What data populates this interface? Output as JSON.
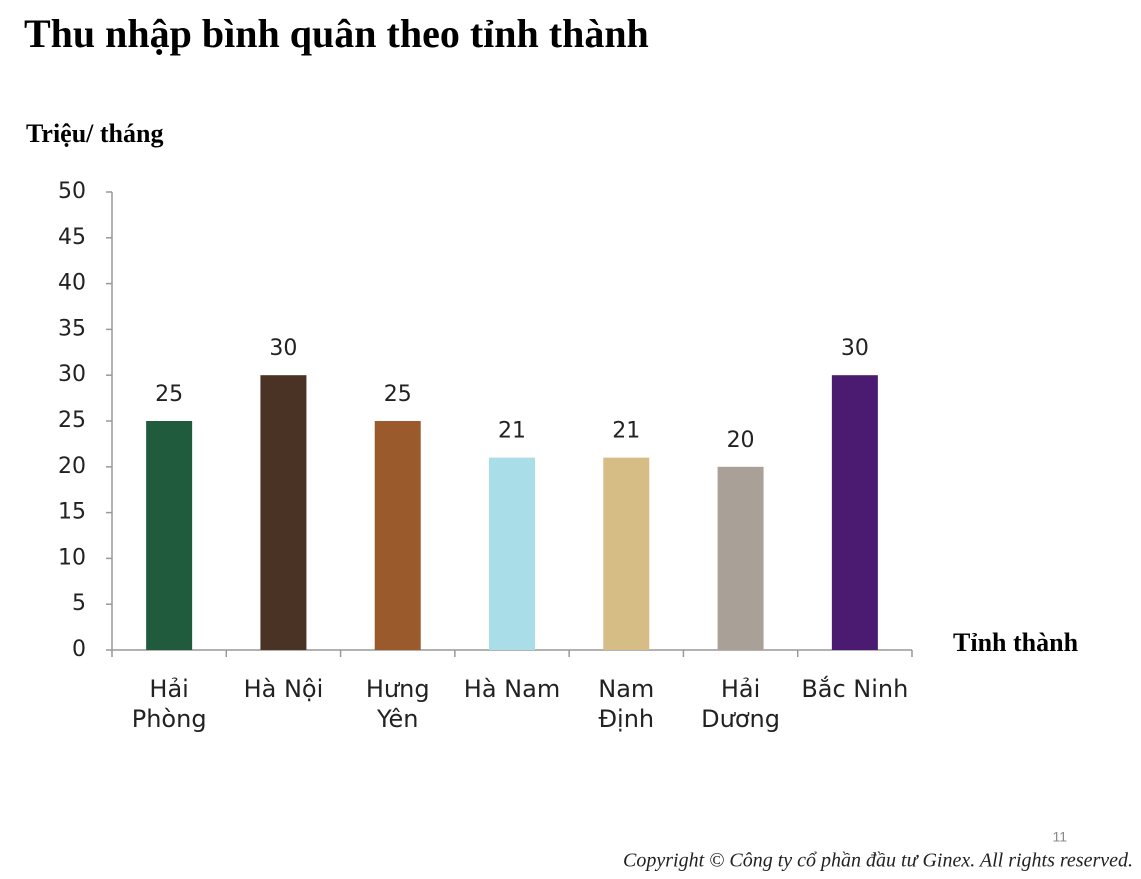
{
  "chart_data": {
    "type": "bar",
    "title": "Thu nhập bình quân theo tỉnh thành",
    "ylabel": "Triệu/ tháng",
    "xlabel": "Tỉnh thành",
    "categories": [
      "Hải\nPhòng",
      "Hà Nội",
      "Hưng\nYên",
      "Hà Nam",
      "Nam\nĐịnh",
      "Hải\nDương",
      "Bắc Ninh"
    ],
    "values": [
      25,
      30,
      25,
      21,
      21,
      20,
      30
    ],
    "colors": [
      "#1f5b3c",
      "#4a3324",
      "#9b5a2b",
      "#a9dde8",
      "#d6bd86",
      "#a9a198",
      "#4b1b72"
    ],
    "ylim": [
      0,
      50
    ],
    "yticks": [
      0,
      5,
      10,
      15,
      20,
      25,
      30,
      35,
      40,
      45,
      50
    ],
    "page_number": "11",
    "copyright": "Copyright © Công ty cổ phần đầu tư Ginex. All rights reserved."
  }
}
